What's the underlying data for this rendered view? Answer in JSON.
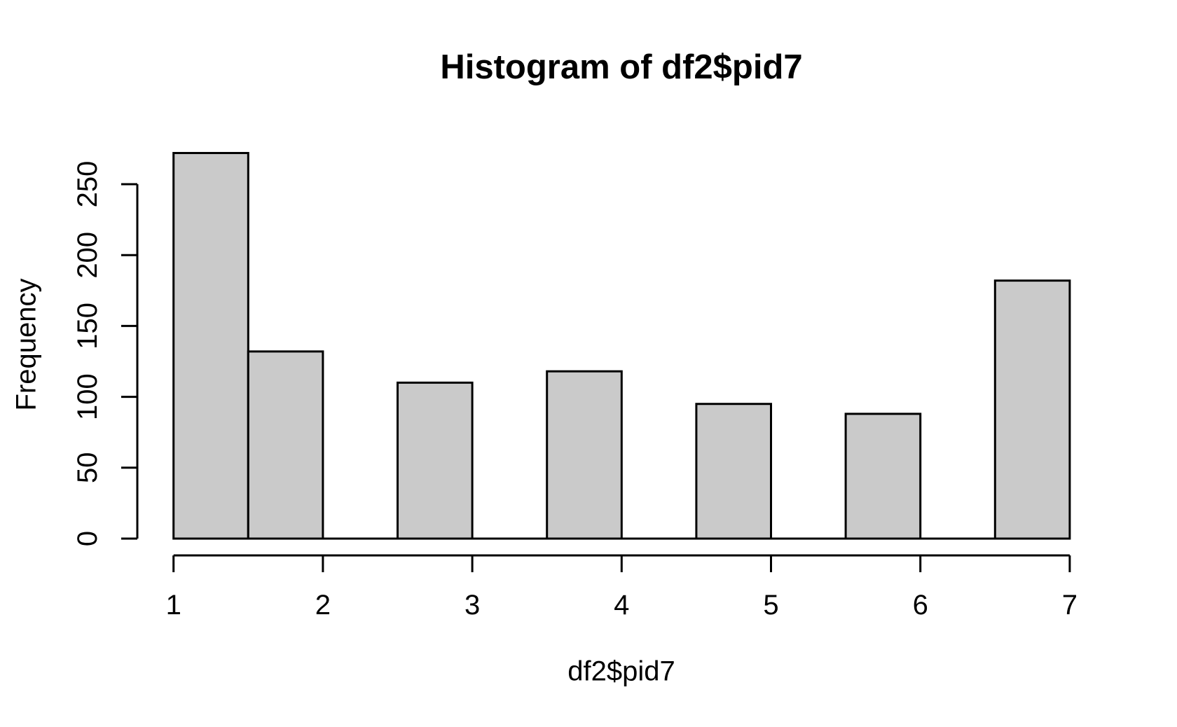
{
  "chart_data": {
    "type": "bar",
    "kind": "histogram",
    "title": "Histogram of df2$pid7",
    "xlabel": "df2$pid7",
    "ylabel": "Frequency",
    "breaks": [
      1,
      1.5,
      2,
      2.5,
      3,
      3.5,
      4,
      4.5,
      5,
      5.5,
      6,
      6.5,
      7
    ],
    "counts": [
      272,
      132,
      0,
      110,
      0,
      118,
      0,
      95,
      0,
      88,
      0,
      182
    ],
    "x_ticks": [
      1,
      2,
      3,
      4,
      5,
      6,
      7
    ],
    "y_ticks": [
      0,
      50,
      100,
      150,
      200,
      250
    ],
    "xlim": [
      1,
      7
    ],
    "ylim": [
      0,
      272
    ],
    "grid": false,
    "legend": "none",
    "bar_fill": "#cacaca",
    "bar_stroke": "#000000",
    "axis_color": "#000000",
    "background": "#ffffff"
  }
}
